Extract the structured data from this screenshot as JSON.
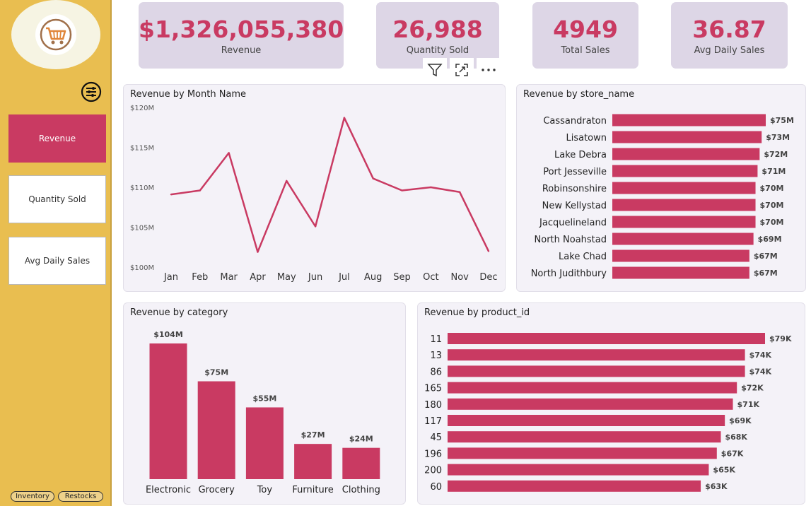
{
  "sidebar": {
    "nav": [
      {
        "label": "Revenue",
        "active": true
      },
      {
        "label": "Quantity Sold",
        "active": false
      },
      {
        "label": "Avg Daily Sales",
        "active": false
      }
    ],
    "footer_links": [
      "Inventory",
      "Restocks"
    ]
  },
  "kpis": [
    {
      "value": "$1,326,055,380",
      "label": "Revenue"
    },
    {
      "value": "26,988",
      "label": "Quantity Sold"
    },
    {
      "value": "4949",
      "label": "Total Sales"
    },
    {
      "value": "36.87",
      "label": "Avg Daily Sales"
    }
  ],
  "colors": {
    "accent": "#c93a62",
    "sidebar": "#e9be50",
    "card": "#ddd6e6",
    "panel": "#f4f2f8"
  },
  "icons": {
    "logo": "shopping-cart-icon",
    "settings": "sliders-icon",
    "filter": "filter-icon",
    "focus": "focus-mode-icon",
    "more": "more-options-icon"
  },
  "chart_data": [
    {
      "type": "line",
      "title": "Revenue by Month Name",
      "categories": [
        "Jan",
        "Feb",
        "Mar",
        "Apr",
        "May",
        "Jun",
        "Jul",
        "Aug",
        "Sep",
        "Oct",
        "Nov",
        "Dec"
      ],
      "values": [
        109.1,
        109.6,
        114.3,
        101.9,
        110.8,
        105.1,
        118.7,
        111.1,
        109.6,
        110.0,
        109.4,
        102.0
      ],
      "yticks": [
        "$100M",
        "$105M",
        "$110M",
        "$115M",
        "$120M"
      ],
      "ylim": [
        100,
        120
      ],
      "grid": false
    },
    {
      "type": "bar",
      "orientation": "horizontal",
      "title": "Revenue by store_name",
      "categories": [
        "Cassandraton",
        "Lisatown",
        "Lake Debra",
        "Port Jesseville",
        "Robinsonshire",
        "New Kellystad",
        "Jacquelineland",
        "North Noahstad",
        "Lake Chad",
        "North Judithbury"
      ],
      "values": [
        75,
        73,
        72,
        71,
        70,
        70,
        70,
        69,
        67,
        67
      ],
      "labels": [
        "$75M",
        "$73M",
        "$72M",
        "$71M",
        "$70M",
        "$70M",
        "$70M",
        "$69M",
        "$67M",
        "$67M"
      ]
    },
    {
      "type": "bar",
      "title": "Revenue by category",
      "categories": [
        "Electronic",
        "Grocery",
        "Toy",
        "Furniture",
        "Clothing"
      ],
      "values": [
        104,
        75,
        55,
        27,
        24
      ],
      "labels": [
        "$104M",
        "$75M",
        "$55M",
        "$27M",
        "$24M"
      ]
    },
    {
      "type": "bar",
      "orientation": "horizontal",
      "title": "Revenue by product_id",
      "categories": [
        "11",
        "13",
        "86",
        "165",
        "180",
        "117",
        "45",
        "196",
        "200",
        "60"
      ],
      "values": [
        79,
        74,
        74,
        72,
        71,
        69,
        68,
        67,
        65,
        63
      ],
      "labels": [
        "$79K",
        "$74K",
        "$74K",
        "$72K",
        "$71K",
        "$69K",
        "$68K",
        "$67K",
        "$65K",
        "$63K"
      ]
    }
  ]
}
